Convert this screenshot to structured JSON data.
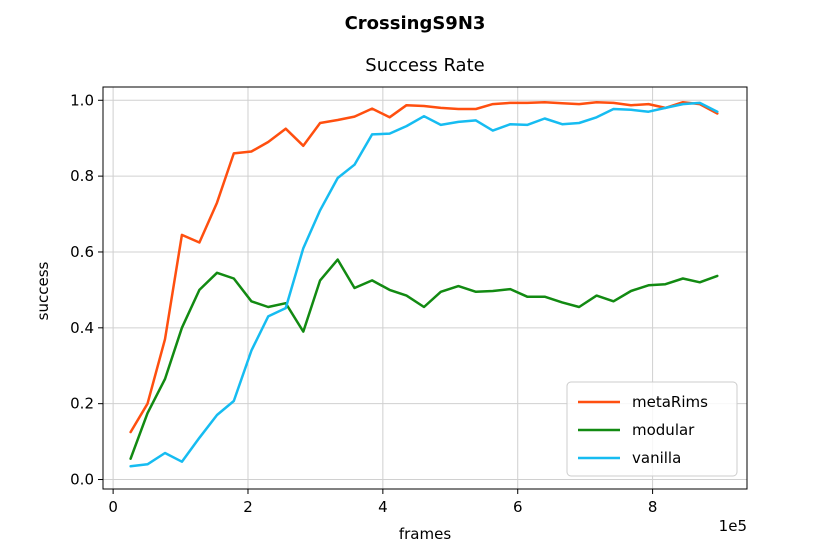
{
  "suptitle": "CrossingS9N3",
  "chart_data": {
    "type": "line",
    "title": "Success Rate",
    "xlabel": "frames",
    "ylabel": "success",
    "x_offset_text": "1e5",
    "xlim": [
      -0.15,
      9.4
    ],
    "ylim": [
      -0.025,
      1.035
    ],
    "xticks": [
      0,
      2,
      4,
      6,
      8
    ],
    "xtick_labels": [
      "0",
      "2",
      "4",
      "6",
      "8"
    ],
    "yticks": [
      0.0,
      0.2,
      0.4,
      0.6,
      0.8,
      1.0
    ],
    "ytick_labels": [
      "0.0",
      "0.2",
      "0.4",
      "0.6",
      "0.8",
      "1.0"
    ],
    "grid": true,
    "legend_position": "lower-right",
    "x": [
      0.26,
      0.51,
      0.77,
      1.02,
      1.28,
      1.54,
      1.79,
      2.05,
      2.3,
      2.56,
      2.82,
      3.07,
      3.33,
      3.58,
      3.84,
      4.1,
      4.35,
      4.61,
      4.86,
      5.12,
      5.38,
      5.63,
      5.89,
      6.14,
      6.4,
      6.66,
      6.91,
      7.17,
      7.42,
      7.68,
      7.94,
      8.19,
      8.45,
      8.7,
      8.96
    ],
    "series": [
      {
        "name": "metaRims",
        "color": "#ff4f0f",
        "values": [
          0.125,
          0.2,
          0.37,
          0.645,
          0.625,
          0.73,
          0.86,
          0.865,
          0.89,
          0.925,
          0.88,
          0.94,
          0.948,
          0.957,
          0.978,
          0.955,
          0.987,
          0.985,
          0.98,
          0.977,
          0.977,
          0.99,
          0.993,
          0.993,
          0.995,
          0.992,
          0.99,
          0.995,
          0.993,
          0.987,
          0.99,
          0.98,
          0.995,
          0.99,
          0.965
        ]
      },
      {
        "name": "modular",
        "color": "#128a12",
        "values": [
          0.055,
          0.175,
          0.265,
          0.4,
          0.5,
          0.545,
          0.53,
          0.47,
          0.455,
          0.465,
          0.39,
          0.525,
          0.58,
          0.505,
          0.525,
          0.5,
          0.485,
          0.455,
          0.495,
          0.51,
          0.495,
          0.497,
          0.502,
          0.482,
          0.482,
          0.467,
          0.455,
          0.485,
          0.47,
          0.497,
          0.512,
          0.515,
          0.53,
          0.52,
          0.537
        ]
      },
      {
        "name": "vanilla",
        "color": "#16bcf1",
        "values": [
          0.035,
          0.04,
          0.07,
          0.047,
          0.11,
          0.17,
          0.207,
          0.34,
          0.43,
          0.452,
          0.61,
          0.71,
          0.795,
          0.83,
          0.91,
          0.912,
          0.932,
          0.958,
          0.935,
          0.943,
          0.947,
          0.92,
          0.937,
          0.935,
          0.952,
          0.937,
          0.94,
          0.955,
          0.977,
          0.975,
          0.97,
          0.98,
          0.99,
          0.993,
          0.97
        ]
      }
    ]
  }
}
